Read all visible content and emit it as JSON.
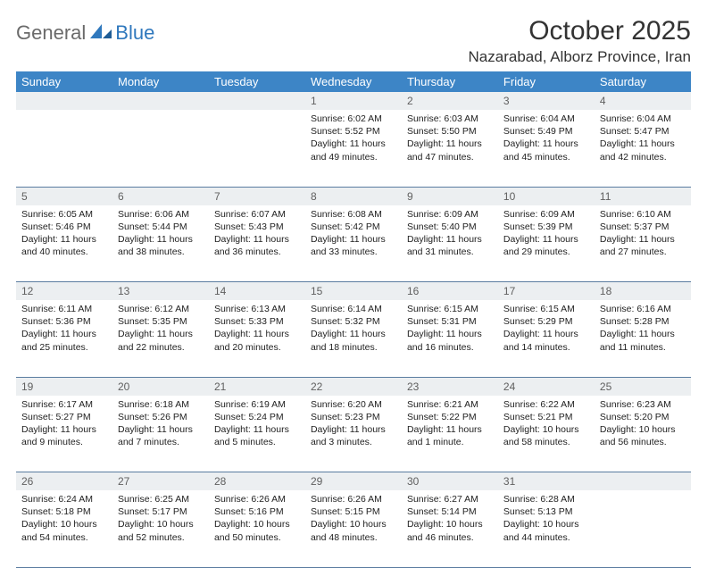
{
  "logo": {
    "general": "General",
    "blue": "Blue"
  },
  "title": "October 2025",
  "location": "Nazarabad, Alborz Province, Iran",
  "colors": {
    "header_bg": "#3d85c6",
    "header_text": "#ffffff",
    "daynum_bg": "#eceff1",
    "daynum_text": "#606060",
    "row_border": "#5a7ca0",
    "logo_gray": "#6a6a6a",
    "logo_blue": "#2f78bd"
  },
  "weekdays": [
    "Sunday",
    "Monday",
    "Tuesday",
    "Wednesday",
    "Thursday",
    "Friday",
    "Saturday"
  ],
  "weeks": [
    [
      {
        "n": "",
        "lines": []
      },
      {
        "n": "",
        "lines": []
      },
      {
        "n": "",
        "lines": []
      },
      {
        "n": "1",
        "lines": [
          "Sunrise: 6:02 AM",
          "Sunset: 5:52 PM",
          "Daylight: 11 hours",
          "and 49 minutes."
        ]
      },
      {
        "n": "2",
        "lines": [
          "Sunrise: 6:03 AM",
          "Sunset: 5:50 PM",
          "Daylight: 11 hours",
          "and 47 minutes."
        ]
      },
      {
        "n": "3",
        "lines": [
          "Sunrise: 6:04 AM",
          "Sunset: 5:49 PM",
          "Daylight: 11 hours",
          "and 45 minutes."
        ]
      },
      {
        "n": "4",
        "lines": [
          "Sunrise: 6:04 AM",
          "Sunset: 5:47 PM",
          "Daylight: 11 hours",
          "and 42 minutes."
        ]
      }
    ],
    [
      {
        "n": "5",
        "lines": [
          "Sunrise: 6:05 AM",
          "Sunset: 5:46 PM",
          "Daylight: 11 hours",
          "and 40 minutes."
        ]
      },
      {
        "n": "6",
        "lines": [
          "Sunrise: 6:06 AM",
          "Sunset: 5:44 PM",
          "Daylight: 11 hours",
          "and 38 minutes."
        ]
      },
      {
        "n": "7",
        "lines": [
          "Sunrise: 6:07 AM",
          "Sunset: 5:43 PM",
          "Daylight: 11 hours",
          "and 36 minutes."
        ]
      },
      {
        "n": "8",
        "lines": [
          "Sunrise: 6:08 AM",
          "Sunset: 5:42 PM",
          "Daylight: 11 hours",
          "and 33 minutes."
        ]
      },
      {
        "n": "9",
        "lines": [
          "Sunrise: 6:09 AM",
          "Sunset: 5:40 PM",
          "Daylight: 11 hours",
          "and 31 minutes."
        ]
      },
      {
        "n": "10",
        "lines": [
          "Sunrise: 6:09 AM",
          "Sunset: 5:39 PM",
          "Daylight: 11 hours",
          "and 29 minutes."
        ]
      },
      {
        "n": "11",
        "lines": [
          "Sunrise: 6:10 AM",
          "Sunset: 5:37 PM",
          "Daylight: 11 hours",
          "and 27 minutes."
        ]
      }
    ],
    [
      {
        "n": "12",
        "lines": [
          "Sunrise: 6:11 AM",
          "Sunset: 5:36 PM",
          "Daylight: 11 hours",
          "and 25 minutes."
        ]
      },
      {
        "n": "13",
        "lines": [
          "Sunrise: 6:12 AM",
          "Sunset: 5:35 PM",
          "Daylight: 11 hours",
          "and 22 minutes."
        ]
      },
      {
        "n": "14",
        "lines": [
          "Sunrise: 6:13 AM",
          "Sunset: 5:33 PM",
          "Daylight: 11 hours",
          "and 20 minutes."
        ]
      },
      {
        "n": "15",
        "lines": [
          "Sunrise: 6:14 AM",
          "Sunset: 5:32 PM",
          "Daylight: 11 hours",
          "and 18 minutes."
        ]
      },
      {
        "n": "16",
        "lines": [
          "Sunrise: 6:15 AM",
          "Sunset: 5:31 PM",
          "Daylight: 11 hours",
          "and 16 minutes."
        ]
      },
      {
        "n": "17",
        "lines": [
          "Sunrise: 6:15 AM",
          "Sunset: 5:29 PM",
          "Daylight: 11 hours",
          "and 14 minutes."
        ]
      },
      {
        "n": "18",
        "lines": [
          "Sunrise: 6:16 AM",
          "Sunset: 5:28 PM",
          "Daylight: 11 hours",
          "and 11 minutes."
        ]
      }
    ],
    [
      {
        "n": "19",
        "lines": [
          "Sunrise: 6:17 AM",
          "Sunset: 5:27 PM",
          "Daylight: 11 hours",
          "and 9 minutes."
        ]
      },
      {
        "n": "20",
        "lines": [
          "Sunrise: 6:18 AM",
          "Sunset: 5:26 PM",
          "Daylight: 11 hours",
          "and 7 minutes."
        ]
      },
      {
        "n": "21",
        "lines": [
          "Sunrise: 6:19 AM",
          "Sunset: 5:24 PM",
          "Daylight: 11 hours",
          "and 5 minutes."
        ]
      },
      {
        "n": "22",
        "lines": [
          "Sunrise: 6:20 AM",
          "Sunset: 5:23 PM",
          "Daylight: 11 hours",
          "and 3 minutes."
        ]
      },
      {
        "n": "23",
        "lines": [
          "Sunrise: 6:21 AM",
          "Sunset: 5:22 PM",
          "Daylight: 11 hours",
          "and 1 minute."
        ]
      },
      {
        "n": "24",
        "lines": [
          "Sunrise: 6:22 AM",
          "Sunset: 5:21 PM",
          "Daylight: 10 hours",
          "and 58 minutes."
        ]
      },
      {
        "n": "25",
        "lines": [
          "Sunrise: 6:23 AM",
          "Sunset: 5:20 PM",
          "Daylight: 10 hours",
          "and 56 minutes."
        ]
      }
    ],
    [
      {
        "n": "26",
        "lines": [
          "Sunrise: 6:24 AM",
          "Sunset: 5:18 PM",
          "Daylight: 10 hours",
          "and 54 minutes."
        ]
      },
      {
        "n": "27",
        "lines": [
          "Sunrise: 6:25 AM",
          "Sunset: 5:17 PM",
          "Daylight: 10 hours",
          "and 52 minutes."
        ]
      },
      {
        "n": "28",
        "lines": [
          "Sunrise: 6:26 AM",
          "Sunset: 5:16 PM",
          "Daylight: 10 hours",
          "and 50 minutes."
        ]
      },
      {
        "n": "29",
        "lines": [
          "Sunrise: 6:26 AM",
          "Sunset: 5:15 PM",
          "Daylight: 10 hours",
          "and 48 minutes."
        ]
      },
      {
        "n": "30",
        "lines": [
          "Sunrise: 6:27 AM",
          "Sunset: 5:14 PM",
          "Daylight: 10 hours",
          "and 46 minutes."
        ]
      },
      {
        "n": "31",
        "lines": [
          "Sunrise: 6:28 AM",
          "Sunset: 5:13 PM",
          "Daylight: 10 hours",
          "and 44 minutes."
        ]
      },
      {
        "n": "",
        "lines": []
      }
    ]
  ]
}
